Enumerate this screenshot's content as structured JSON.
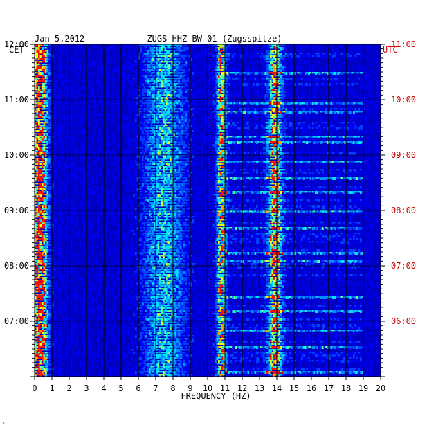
{
  "chart_data": {
    "type": "heatmap",
    "header": {
      "date": "Jan 5,2012",
      "station": "ZUGS HHZ BW 01 (Zugsspitze)"
    },
    "left_axis_title": "CET",
    "right_axis_title": "UTC",
    "xlabel": "FREQUENCY (HZ)",
    "x_ticks": [
      "0",
      "1",
      "2",
      "3",
      "4",
      "5",
      "6",
      "7",
      "8",
      "9",
      "10",
      "11",
      "12",
      "13",
      "14",
      "15",
      "16",
      "17",
      "18",
      "19",
      "20"
    ],
    "xlim": [
      0,
      20
    ],
    "left_ticks": [
      "12:00",
      "11:00",
      "10:00",
      "09:00",
      "08:00",
      "07:00"
    ],
    "right_ticks": [
      "11:00",
      "10:00",
      "09:00",
      "08:00",
      "07:00",
      "06:00"
    ],
    "time_range_hours": 6,
    "footer_mark": "✓",
    "colors": {
      "background": "#0000c0",
      "grid": "#000000",
      "right_axis": "#d00000"
    },
    "energy_bands_hz": [
      {
        "center": 0.3,
        "width": 0.5,
        "strength": "very high"
      },
      {
        "center": 7.5,
        "width": 1.2,
        "strength": "moderate"
      },
      {
        "center": 10.8,
        "width": 0.3,
        "strength": "high"
      },
      {
        "center": 13.9,
        "width": 0.4,
        "strength": "high"
      }
    ]
  }
}
